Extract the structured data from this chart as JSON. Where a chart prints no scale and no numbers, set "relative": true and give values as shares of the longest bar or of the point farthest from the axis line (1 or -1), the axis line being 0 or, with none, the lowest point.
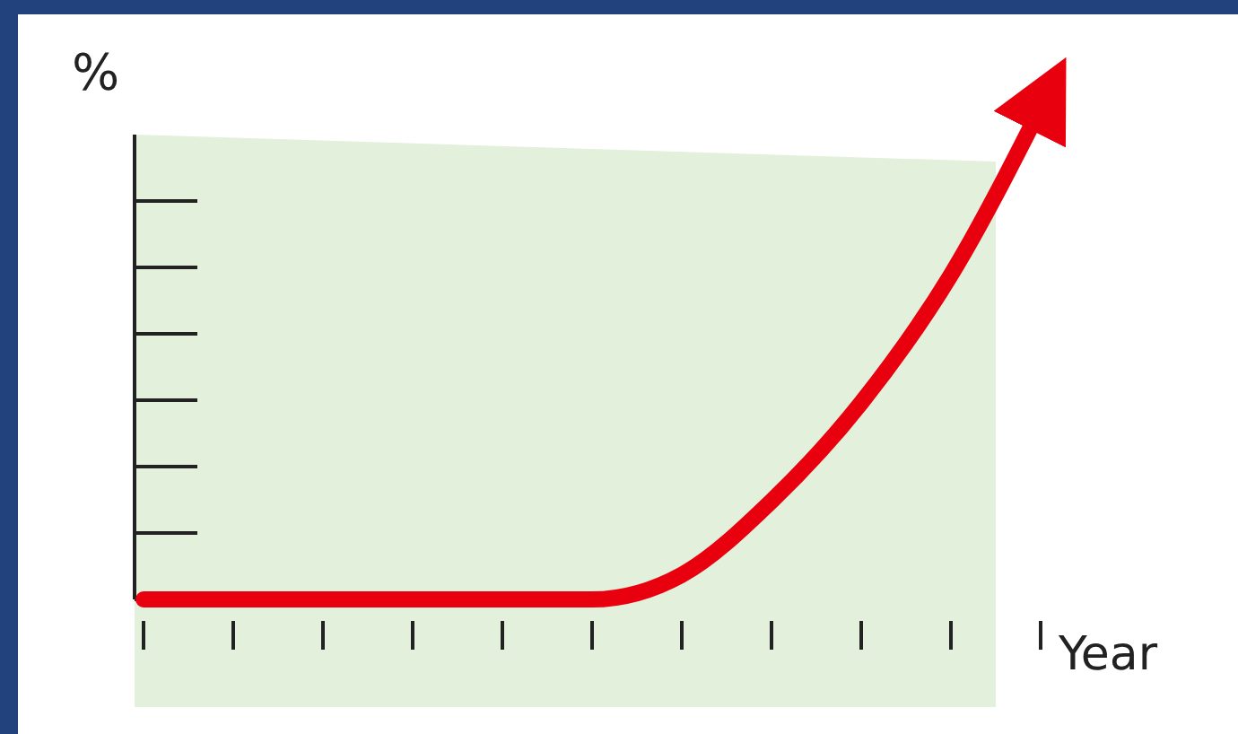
{
  "chart_data": {
    "type": "line",
    "relative": true,
    "ylabel": "%",
    "xlabel": "Year",
    "categories": [
      null,
      null,
      null,
      null,
      null,
      null,
      null,
      null,
      null,
      null,
      null
    ],
    "series": [
      {
        "color": "#e8000f",
        "values": [
          0,
          0,
          0,
          0,
          0,
          0,
          0.05,
          0.2,
          0.4,
          0.66,
          1
        ]
      }
    ],
    "grid": false,
    "marker": "none",
    "line_style": "solid"
  }
}
